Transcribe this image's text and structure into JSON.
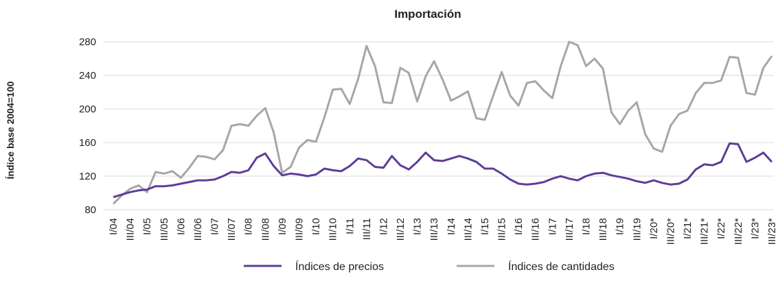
{
  "chart_data": {
    "type": "line",
    "title": "Importación",
    "y_label": "Índice base 2004=100",
    "categories": [
      "I/04",
      null,
      "III/04",
      null,
      "I/05",
      null,
      "III/05",
      null,
      "I/06",
      null,
      "III/06",
      null,
      "I/07",
      null,
      "III/07",
      null,
      "I/08",
      null,
      "III/08",
      null,
      "I/09",
      null,
      "III/09",
      null,
      "I/10",
      null,
      "III/10",
      null,
      "I/11",
      null,
      "III/11",
      null,
      "I/12",
      null,
      "III/12",
      null,
      "I/13",
      null,
      "III/13",
      null,
      "I/14",
      null,
      "III/14",
      null,
      "I/15",
      null,
      "III/15",
      null,
      "I/16",
      null,
      "III/16",
      null,
      "I/17",
      null,
      "III/17",
      null,
      "I/18",
      null,
      "III/18",
      null,
      "I/19",
      null,
      "III/19",
      null,
      "I/20*",
      null,
      "III/20*",
      null,
      "I/21*",
      null,
      "III/21*",
      null,
      "I/22*",
      null,
      "III/22*",
      null,
      "I/23*",
      null,
      "III/23*"
    ],
    "series": [
      {
        "name": "Índices de precios",
        "color": "#5c3d99",
        "values": [
          95,
          98,
          101,
          103,
          104,
          108,
          108,
          109,
          111,
          113,
          115,
          115,
          116,
          120,
          125,
          124,
          127,
          142,
          147,
          132,
          121,
          123,
          122,
          120,
          122,
          129,
          127,
          126,
          132,
          141,
          139,
          131,
          130,
          144,
          133,
          128,
          137,
          148,
          139,
          138,
          141,
          144,
          141,
          137,
          129,
          129,
          123,
          116,
          111,
          110,
          111,
          113,
          117,
          120,
          117,
          115,
          120,
          123,
          124,
          121,
          119,
          117,
          114,
          112,
          115,
          112,
          110,
          111,
          116,
          128,
          134,
          133,
          137,
          159,
          158,
          137,
          142,
          148,
          137
        ]
      },
      {
        "name": "Índices de cantidades",
        "color": "#a6a6a6",
        "values": [
          87,
          97,
          105,
          109,
          101,
          125,
          123,
          126,
          118,
          130,
          144,
          143,
          140,
          151,
          180,
          182,
          180,
          192,
          201,
          172,
          124,
          131,
          154,
          163,
          161,
          190,
          223,
          224,
          206,
          236,
          275,
          251,
          208,
          207,
          249,
          243,
          209,
          239,
          257,
          235,
          210,
          215,
          221,
          189,
          187,
          216,
          244,
          216,
          204,
          231,
          233,
          222,
          213,
          251,
          280,
          276,
          251,
          260,
          248,
          196,
          182,
          198,
          208,
          170,
          153,
          149,
          180,
          194,
          198,
          219,
          231,
          231,
          234,
          262,
          261,
          219,
          217,
          249,
          263
        ]
      }
    ],
    "ylim": [
      80,
      280
    ],
    "yticks": [
      80,
      120,
      160,
      200,
      240,
      280
    ],
    "grid": true,
    "legend": "bottom"
  }
}
